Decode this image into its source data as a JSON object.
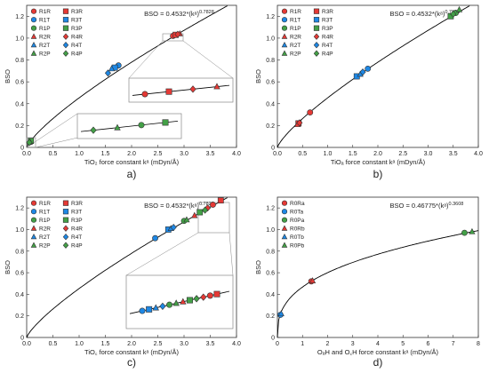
{
  "colors": {
    "R": "#e53935",
    "T": "#1e88e5",
    "P": "#43a047",
    "curve": "#000000",
    "frame": "#333333",
    "inset": "#888888"
  },
  "chart_data": [
    {
      "type": "scatter",
      "panel_label": "a)",
      "xlabel": "TiO₂ force constant kᵃ (mDyn/Å)",
      "ylabel": "BSO",
      "equation": "BSO = 0.4532*(kᵃ)^0.7828",
      "xlim": [
        0.0,
        4.0
      ],
      "ylim": [
        0.0,
        1.3
      ],
      "xticks": [
        "0.0",
        "0.5",
        "1.0",
        "1.5",
        "2.0",
        "2.5",
        "3.0",
        "3.5",
        "4.0"
      ],
      "yticks": [
        "0",
        "0.2",
        "0.4",
        "0.6",
        "0.8",
        "1.0",
        "1.2"
      ],
      "curve": {
        "a": 0.4532,
        "b": 0.7828
      },
      "legend": {
        "placement": "top-left",
        "columns": 2
      },
      "series": [
        {
          "name": "R1R",
          "marker": "circle",
          "color": "R",
          "points": [
            [
              2.79,
              1.02
            ]
          ]
        },
        {
          "name": "R3R",
          "marker": "square",
          "color": "R",
          "points": [
            [
              2.84,
              1.03
            ]
          ]
        },
        {
          "name": "R1T",
          "marker": "circle",
          "color": "T",
          "points": [
            [
              1.75,
              0.75
            ]
          ]
        },
        {
          "name": "R3T",
          "marker": "square",
          "color": "T",
          "points": [
            [
              1.68,
              0.73
            ]
          ]
        },
        {
          "name": "R1P",
          "marker": "circle",
          "color": "P",
          "points": [
            [
              0.07,
              0.05
            ]
          ]
        },
        {
          "name": "R3P",
          "marker": "square",
          "color": "P",
          "points": [
            [
              0.08,
              0.06
            ]
          ]
        },
        {
          "name": "R2R",
          "marker": "triangle",
          "color": "R",
          "points": [
            [
              2.92,
              1.04
            ]
          ]
        },
        {
          "name": "R4R",
          "marker": "diamond",
          "color": "R",
          "points": [
            [
              2.88,
              1.035
            ]
          ]
        },
        {
          "name": "R2T",
          "marker": "triangle",
          "color": "T",
          "points": [
            [
              1.62,
              0.72
            ]
          ]
        },
        {
          "name": "R4T",
          "marker": "diamond",
          "color": "T",
          "points": [
            [
              1.55,
              0.68
            ]
          ]
        },
        {
          "name": "R2P",
          "marker": "triangle",
          "color": "P",
          "points": [
            [
              0.06,
              0.05
            ]
          ]
        },
        {
          "name": "R4P",
          "marker": "diamond",
          "color": "P",
          "points": [
            [
              0.05,
              0.045
            ]
          ]
        }
      ]
    },
    {
      "type": "scatter",
      "panel_label": "b)",
      "xlabel": "TiOₐ force constant kᵃ (mDyn/Å)",
      "ylabel": "BSO",
      "equation": "BSO = 0.4532*(kᵃ)^0.7828",
      "xlim": [
        0.0,
        4.0
      ],
      "ylim": [
        0.0,
        1.3
      ],
      "xticks": [
        "0.0",
        "0.5",
        "1.0",
        "1.5",
        "2.0",
        "2.5",
        "3.0",
        "3.5",
        "4.0"
      ],
      "yticks": [
        "0",
        "0.2",
        "0.4",
        "0.6",
        "0.8",
        "1.0",
        "1.2"
      ],
      "curve": {
        "a": 0.4532,
        "b": 0.7828
      },
      "legend": {
        "placement": "top-left",
        "columns": 2
      },
      "series": [
        {
          "name": "R1R",
          "marker": "circle",
          "color": "R",
          "points": [
            [
              0.65,
              0.32
            ]
          ]
        },
        {
          "name": "R3R",
          "marker": "square",
          "color": "R",
          "points": [
            [
              0.42,
              0.22
            ]
          ]
        },
        {
          "name": "R1T",
          "marker": "circle",
          "color": "T",
          "points": [
            [
              1.8,
              0.72
            ]
          ]
        },
        {
          "name": "R3T",
          "marker": "square",
          "color": "T",
          "points": [
            [
              1.58,
              0.65
            ]
          ]
        },
        {
          "name": "R1P",
          "marker": "circle",
          "color": "P",
          "points": [
            [
              3.55,
              1.23
            ]
          ]
        },
        {
          "name": "R3P",
          "marker": "square",
          "color": "P",
          "points": [
            [
              3.45,
              1.2
            ]
          ]
        },
        {
          "name": "R2R",
          "marker": "triangle",
          "color": "R",
          "points": [
            [
              0.4,
              0.21
            ]
          ]
        },
        {
          "name": "R4R",
          "marker": "diamond",
          "color": "R",
          "points": [
            [
              0.44,
              0.225
            ]
          ]
        },
        {
          "name": "R2T",
          "marker": "triangle",
          "color": "T",
          "points": [
            [
              1.65,
              0.67
            ]
          ]
        },
        {
          "name": "R4T",
          "marker": "diamond",
          "color": "T",
          "points": [
            [
              1.7,
              0.69
            ]
          ]
        },
        {
          "name": "R2P",
          "marker": "triangle",
          "color": "P",
          "points": [
            [
              3.62,
              1.26
            ]
          ]
        },
        {
          "name": "R4P",
          "marker": "diamond",
          "color": "P",
          "points": [
            [
              3.5,
              1.22
            ]
          ]
        }
      ]
    },
    {
      "type": "scatter",
      "panel_label": "c)",
      "xlabel": "TiO꜀ force constant kᵃ (mDyn/Å)",
      "ylabel": "BSO",
      "equation": "BSO = 0.4532*(kᵃ)^0.7828",
      "xlim": [
        0.0,
        4.0
      ],
      "ylim": [
        0.0,
        1.3
      ],
      "xticks": [
        "0.0",
        "0.5",
        "1.0",
        "1.5",
        "2.0",
        "2.5",
        "3.0",
        "3.5",
        "4.0"
      ],
      "yticks": [
        "0",
        "0.2",
        "0.4",
        "0.6",
        "0.8",
        "1.0",
        "1.2"
      ],
      "curve": {
        "a": 0.4532,
        "b": 0.7828
      },
      "legend": {
        "placement": "top-left",
        "columns": 2
      },
      "series": [
        {
          "name": "R1R",
          "marker": "circle",
          "color": "R",
          "points": [
            [
              3.55,
              1.23
            ]
          ]
        },
        {
          "name": "R3R",
          "marker": "square",
          "color": "R",
          "points": [
            [
              3.7,
              1.27
            ]
          ]
        },
        {
          "name": "R1T",
          "marker": "circle",
          "color": "T",
          "points": [
            [
              2.45,
              0.92
            ]
          ]
        },
        {
          "name": "R3T",
          "marker": "square",
          "color": "T",
          "points": [
            [
              2.7,
              1.0
            ]
          ]
        },
        {
          "name": "R1P",
          "marker": "circle",
          "color": "P",
          "points": [
            [
              3.0,
              1.08
            ]
          ]
        },
        {
          "name": "R3P",
          "marker": "square",
          "color": "P",
          "points": [
            [
              3.3,
              1.16
            ]
          ]
        },
        {
          "name": "R2R",
          "marker": "triangle",
          "color": "R",
          "points": [
            [
              3.2,
              1.13
            ]
          ]
        },
        {
          "name": "R4R",
          "marker": "diamond",
          "color": "R",
          "points": [
            [
              3.45,
              1.2
            ]
          ]
        },
        {
          "name": "R2T",
          "marker": "triangle",
          "color": "T",
          "points": [
            [
              2.75,
              1.01
            ]
          ]
        },
        {
          "name": "R4T",
          "marker": "diamond",
          "color": "T",
          "points": [
            [
              2.8,
              1.02
            ]
          ]
        },
        {
          "name": "R2P",
          "marker": "triangle",
          "color": "P",
          "points": [
            [
              3.05,
              1.09
            ]
          ]
        },
        {
          "name": "R4P",
          "marker": "diamond",
          "color": "P",
          "points": [
            [
              3.4,
              1.18
            ]
          ]
        }
      ]
    },
    {
      "type": "scatter",
      "panel_label": "d)",
      "xlabel": "OₐH and O꜀H force constant kᵃ (mDyn/Å)",
      "ylabel": "BSO",
      "equation": "BSO = 0.46775*(kᵃ)^0.3608",
      "xlim": [
        0,
        8
      ],
      "ylim": [
        0.0,
        1.3
      ],
      "xticks": [
        "0",
        "1",
        "2",
        "3",
        "4",
        "5",
        "6",
        "7",
        "8"
      ],
      "yticks": [
        "0",
        "0.2",
        "0.4",
        "0.6",
        "0.8",
        "1.0",
        "1.2"
      ],
      "curve": {
        "a": 0.46775,
        "b": 0.3608
      },
      "legend": {
        "placement": "top-left",
        "columns": 1
      },
      "series": [
        {
          "name": "R0Ra",
          "marker": "circle",
          "color": "R",
          "points": [
            [
              1.35,
              0.52
            ]
          ]
        },
        {
          "name": "R0Ta",
          "marker": "circle",
          "color": "T",
          "points": [
            [
              0.12,
              0.21
            ]
          ]
        },
        {
          "name": "R0Pa",
          "marker": "circle",
          "color": "P",
          "points": [
            [
              7.45,
              0.97
            ]
          ]
        },
        {
          "name": "R0Rb",
          "marker": "triangle",
          "color": "R",
          "points": [
            [
              1.4,
              0.525
            ]
          ]
        },
        {
          "name": "R0Tb",
          "marker": "triangle",
          "color": "T",
          "points": [
            [
              0.15,
              0.22
            ]
          ]
        },
        {
          "name": "R0Pb",
          "marker": "triangle",
          "color": "P",
          "points": [
            [
              7.75,
              0.98
            ]
          ]
        }
      ]
    }
  ]
}
